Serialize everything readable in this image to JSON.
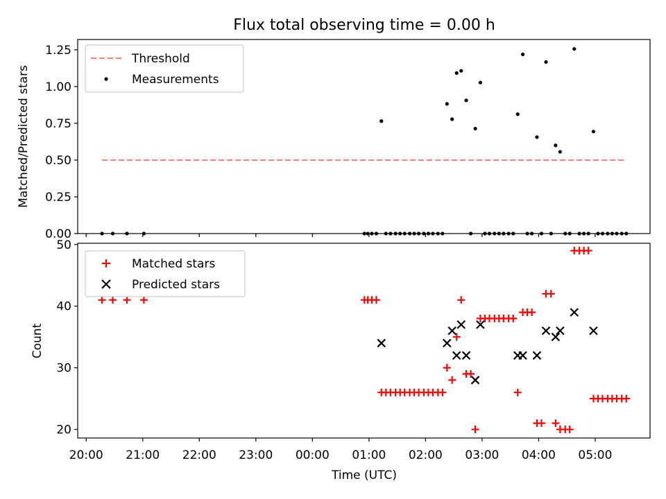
{
  "chart_data": [
    {
      "type": "scatter",
      "title": "Flux total observing time = 0.00 h",
      "xlabel": "",
      "ylabel": "Matched/Predicted stars",
      "xlim_hours": [
        19.85,
        29.97
      ],
      "ylim": [
        0,
        1.32
      ],
      "yticks": [
        0,
        0.25,
        0.5,
        0.75,
        1.0,
        1.25
      ],
      "ytick_labels": [
        "0.00",
        "0.25",
        "0.50",
        "0.75",
        "1.00",
        "1.25"
      ],
      "legend_position": "upper-left",
      "series": [
        {
          "name": "Threshold",
          "kind": "dashed-line",
          "color": "#ff7f7f",
          "x": [
            20.28,
            29.55
          ],
          "y": [
            0.5,
            0.5
          ]
        },
        {
          "name": "Measurements",
          "kind": "dots",
          "color": "#000000",
          "points": [
            [
              20.28,
              0
            ],
            [
              20.47,
              0
            ],
            [
              20.72,
              0
            ],
            [
              21.02,
              0
            ],
            [
              24.92,
              0
            ],
            [
              24.98,
              0
            ],
            [
              25.05,
              0
            ],
            [
              25.13,
              0
            ],
            [
              25.22,
              0.765
            ],
            [
              25.3,
              0
            ],
            [
              25.38,
              0
            ],
            [
              25.47,
              0
            ],
            [
              25.55,
              0
            ],
            [
              25.63,
              0
            ],
            [
              25.72,
              0
            ],
            [
              25.8,
              0
            ],
            [
              25.88,
              0
            ],
            [
              25.97,
              0
            ],
            [
              26.05,
              0
            ],
            [
              26.13,
              0
            ],
            [
              26.22,
              0
            ],
            [
              26.3,
              0
            ],
            [
              26.38,
              0.882
            ],
            [
              26.47,
              0.778
            ],
            [
              26.55,
              1.092
            ],
            [
              26.63,
              1.107
            ],
            [
              26.72,
              0.906
            ],
            [
              26.8,
              0
            ],
            [
              26.88,
              0.714
            ],
            [
              26.97,
              1.027
            ],
            [
              27.05,
              0
            ],
            [
              27.13,
              0
            ],
            [
              27.22,
              0
            ],
            [
              27.3,
              0
            ],
            [
              27.38,
              0
            ],
            [
              27.47,
              0
            ],
            [
              27.55,
              0
            ],
            [
              27.63,
              0.812
            ],
            [
              27.72,
              1.219
            ],
            [
              27.8,
              0
            ],
            [
              27.88,
              0
            ],
            [
              27.97,
              0.656
            ],
            [
              28.05,
              0
            ],
            [
              28.13,
              1.167
            ],
            [
              28.22,
              0
            ],
            [
              28.3,
              0.6
            ],
            [
              28.38,
              0.556
            ],
            [
              28.47,
              0
            ],
            [
              28.55,
              0
            ],
            [
              28.63,
              1.256
            ],
            [
              28.72,
              0
            ],
            [
              28.8,
              0
            ],
            [
              28.88,
              0
            ],
            [
              28.97,
              0.694
            ],
            [
              29.05,
              0
            ],
            [
              29.13,
              0
            ],
            [
              29.22,
              0
            ],
            [
              29.3,
              0
            ],
            [
              29.38,
              0
            ],
            [
              29.47,
              0
            ],
            [
              29.55,
              0
            ]
          ]
        }
      ]
    },
    {
      "type": "scatter",
      "title": "",
      "xlabel": "Time (UTC)",
      "ylabel": "Count",
      "xlim_hours": [
        19.85,
        29.97
      ],
      "ylim": [
        18.6,
        50.2
      ],
      "yticks": [
        20,
        30,
        40,
        50
      ],
      "ytick_labels": [
        "20",
        "30",
        "40",
        "50"
      ],
      "xticks_hours": [
        20,
        21,
        22,
        23,
        24,
        25,
        26,
        27,
        28,
        29
      ],
      "xtick_labels": [
        "20:00",
        "21:00",
        "22:00",
        "23:00",
        "00:00",
        "01:00",
        "02:00",
        "03:00",
        "04:00",
        "05:00"
      ],
      "legend_position": "upper-left",
      "series": [
        {
          "name": "Matched stars",
          "kind": "plus",
          "color": "#ff0000",
          "points": [
            [
              20.28,
              41
            ],
            [
              20.47,
              41
            ],
            [
              20.72,
              41
            ],
            [
              21.02,
              41
            ],
            [
              24.92,
              41
            ],
            [
              24.98,
              41
            ],
            [
              25.05,
              41
            ],
            [
              25.13,
              41
            ],
            [
              25.22,
              26
            ],
            [
              25.3,
              26
            ],
            [
              25.38,
              26
            ],
            [
              25.47,
              26
            ],
            [
              25.55,
              26
            ],
            [
              25.63,
              26
            ],
            [
              25.72,
              26
            ],
            [
              25.8,
              26
            ],
            [
              25.88,
              26
            ],
            [
              25.97,
              26
            ],
            [
              26.05,
              26
            ],
            [
              26.13,
              26
            ],
            [
              26.22,
              26
            ],
            [
              26.3,
              26
            ],
            [
              26.38,
              30
            ],
            [
              26.47,
              28
            ],
            [
              26.55,
              35
            ],
            [
              26.63,
              41
            ],
            [
              26.72,
              29
            ],
            [
              26.8,
              29
            ],
            [
              26.88,
              20
            ],
            [
              26.97,
              38
            ],
            [
              27.05,
              38
            ],
            [
              27.13,
              38
            ],
            [
              27.22,
              38
            ],
            [
              27.3,
              38
            ],
            [
              27.38,
              38
            ],
            [
              27.47,
              38
            ],
            [
              27.55,
              38
            ],
            [
              27.63,
              26
            ],
            [
              27.72,
              39
            ],
            [
              27.8,
              39
            ],
            [
              27.88,
              39
            ],
            [
              27.97,
              21
            ],
            [
              28.05,
              21
            ],
            [
              28.13,
              42
            ],
            [
              28.22,
              42
            ],
            [
              28.3,
              21
            ],
            [
              28.38,
              20
            ],
            [
              28.47,
              20
            ],
            [
              28.55,
              20
            ],
            [
              28.63,
              49
            ],
            [
              28.72,
              49
            ],
            [
              28.8,
              49
            ],
            [
              28.88,
              49
            ],
            [
              28.97,
              25
            ],
            [
              29.05,
              25
            ],
            [
              29.13,
              25
            ],
            [
              29.22,
              25
            ],
            [
              29.3,
              25
            ],
            [
              29.38,
              25
            ],
            [
              29.47,
              25
            ],
            [
              29.55,
              25
            ]
          ]
        },
        {
          "name": "Predicted stars",
          "kind": "cross",
          "color": "#000000",
          "points": [
            [
              25.22,
              34
            ],
            [
              26.38,
              34
            ],
            [
              26.47,
              36
            ],
            [
              26.55,
              32
            ],
            [
              26.63,
              37
            ],
            [
              26.72,
              32
            ],
            [
              26.88,
              28
            ],
            [
              26.97,
              37
            ],
            [
              27.63,
              32
            ],
            [
              27.72,
              32
            ],
            [
              27.97,
              32
            ],
            [
              28.13,
              36
            ],
            [
              28.3,
              35
            ],
            [
              28.38,
              36
            ],
            [
              28.63,
              39
            ],
            [
              28.97,
              36
            ]
          ]
        }
      ]
    }
  ]
}
